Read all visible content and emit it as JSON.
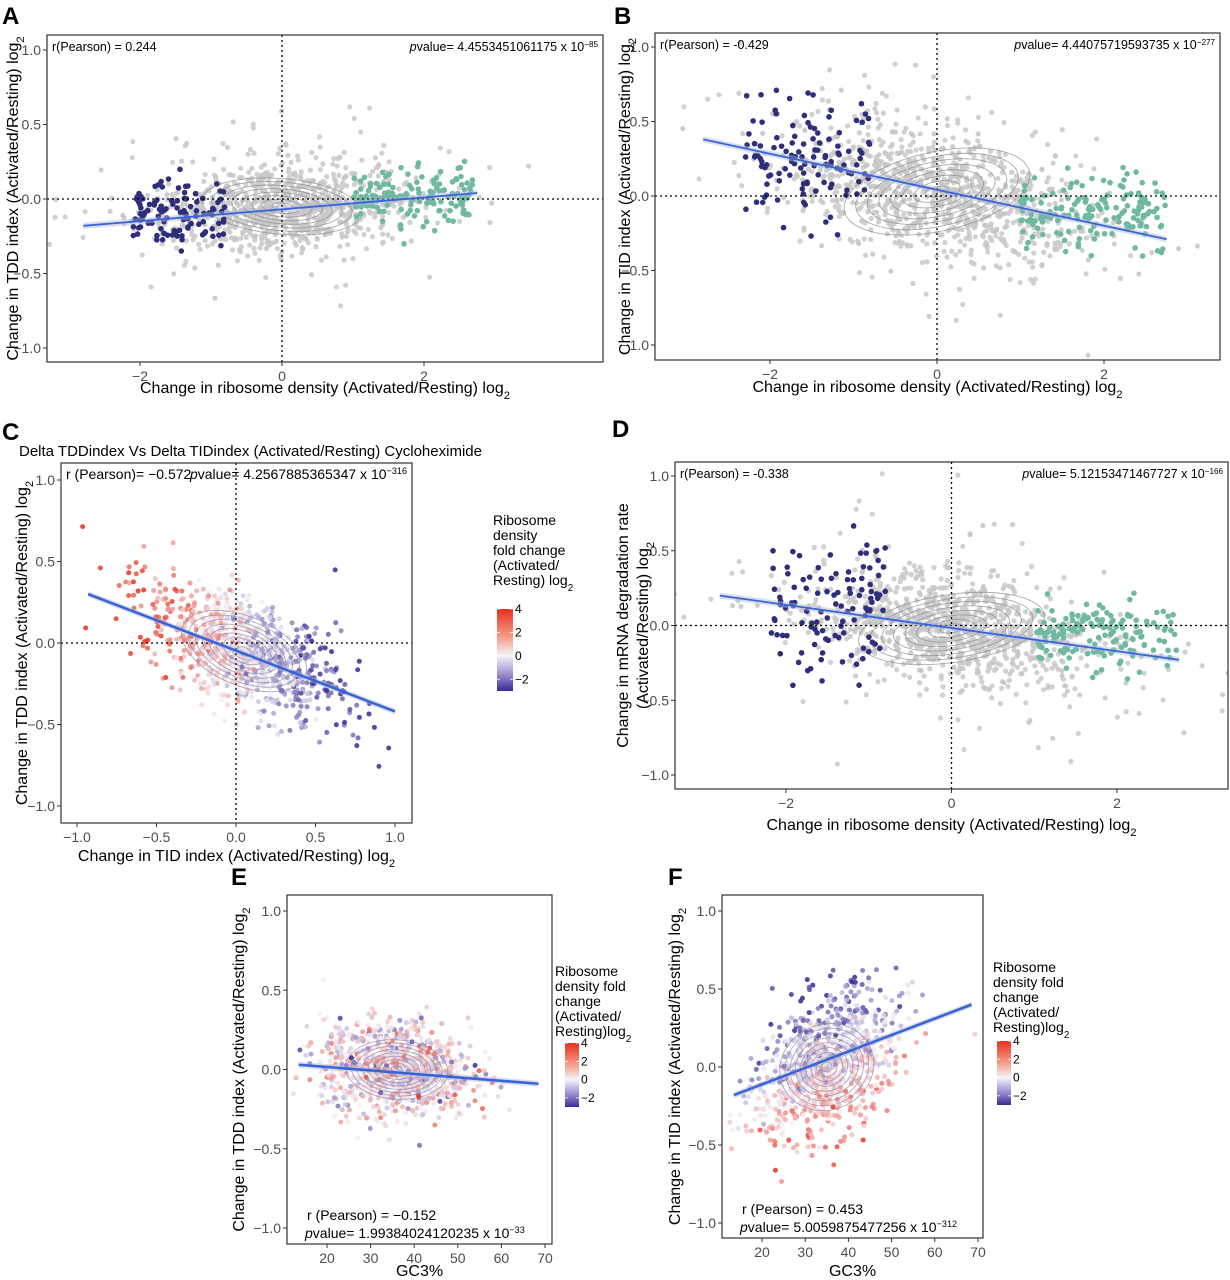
{
  "figure": {
    "colors": {
      "background_points": "#c8c8c8",
      "low_group": "#2e2e7a",
      "high_group": "#6fb8a2",
      "fit_line": "#3a63d8",
      "contour": "#8a8a8a",
      "scale_high": "#e8301c",
      "scale_mid": "#f4f4fa",
      "scale_low": "#3b2a94"
    }
  },
  "chart_data": [
    {
      "id": "A",
      "panel_label": "A",
      "type": "scatter",
      "title": "",
      "xlabel": "Change in ribosome density (Activated/Resting) log",
      "xlabel_sub": "2",
      "ylabel": "Change in TDD index (Activated/Resting) log",
      "ylabel_sub": "2",
      "xlim": [
        -3.0,
        3.2
      ],
      "ylim": [
        -1.1,
        1.1
      ],
      "xticks": [
        -2,
        0,
        2
      ],
      "xtick_labels": [
        "−2",
        "0",
        "2"
      ],
      "yticks": [
        1.0,
        0.5,
        0.0,
        -0.5,
        -1.0
      ],
      "ytick_labels": [
        "1.0",
        "0.5",
        "0.0",
        "−0.5",
        "−1.0"
      ],
      "grid": false,
      "reference_lines": {
        "x": 0,
        "y": 0
      },
      "annotation_left": "r(Pearson) = 0.244",
      "annotation_right_prefix": "p",
      "annotation_right": "value= 4.4553451061175 x 10",
      "annotation_right_exp": "−85",
      "annotation_position": "top",
      "fit_line": {
        "x": [
          -2.8,
          2.75
        ],
        "y": [
          -0.18,
          0.04
        ]
      },
      "cloud": {
        "center": [
          0.0,
          -0.05
        ],
        "spread": [
          0.85,
          0.14
        ],
        "n": 900,
        "slope": 0.04
      },
      "groups": [
        {
          "name": "low ribosome density",
          "color_key": "low_group",
          "x_range": [
            -2.1,
            -0.8
          ],
          "center_y": -0.1,
          "spread_y": 0.12,
          "n": 110
        },
        {
          "name": "high ribosome density",
          "color_key": "high_group",
          "x_range": [
            1.0,
            2.7
          ],
          "center_y": 0.0,
          "spread_y": 0.1,
          "n": 150
        }
      ]
    },
    {
      "id": "B",
      "panel_label": "B",
      "type": "scatter",
      "title": "",
      "xlabel": "Change in ribosome density (Activated/Resting) log",
      "xlabel_sub": "2",
      "ylabel": "Change in TID index (Activated/Resting) log",
      "ylabel_sub": "2",
      "xlim": [
        -3.0,
        3.3
      ],
      "ylim": [
        -1.1,
        1.1
      ],
      "xticks": [
        -2,
        0,
        2
      ],
      "xtick_labels": [
        "−2",
        "0",
        "2"
      ],
      "yticks": [
        1.0,
        0.5,
        0.0,
        -0.5,
        -1.0
      ],
      "ytick_labels": [
        "1.0",
        "0.5",
        "0.0",
        "−0.5",
        "−1.0"
      ],
      "grid": false,
      "reference_lines": {
        "x": 0,
        "y": 0
      },
      "annotation_left": "r(Pearson) = -0.429",
      "annotation_right_prefix": "p",
      "annotation_right": "value= 4.44075719593735 x 10",
      "annotation_right_exp": "−277",
      "annotation_position": "top",
      "fit_line": {
        "x": [
          -2.8,
          2.75
        ],
        "y": [
          0.38,
          -0.29
        ]
      },
      "cloud": {
        "center": [
          0.0,
          0.03
        ],
        "spread": [
          0.85,
          0.2
        ],
        "n": 1000,
        "slope": -0.12
      },
      "groups": [
        {
          "name": "low ribosome density",
          "color_key": "low_group",
          "x_range": [
            -2.3,
            -0.8
          ],
          "center_y": 0.25,
          "spread_y": 0.22,
          "n": 120
        },
        {
          "name": "high ribosome density",
          "color_key": "high_group",
          "x_range": [
            1.0,
            2.75
          ],
          "center_y": -0.12,
          "spread_y": 0.12,
          "n": 160
        }
      ]
    },
    {
      "id": "C",
      "panel_label": "C",
      "type": "scatter",
      "title": "Delta TDDindex Vs Delta TIDindex (Activated/Resting) Cycloheximide",
      "xlabel": "Change in TID index (Activated/Resting) log",
      "xlabel_sub": "2",
      "ylabel": "Change in TDD index (Activated/Resting) log",
      "ylabel_sub": "2",
      "xlim": [
        -1.1,
        1.1
      ],
      "ylim": [
        -1.1,
        1.1
      ],
      "xticks": [
        -1.0,
        -0.5,
        0.0,
        0.5,
        1.0
      ],
      "xtick_labels": [
        "−1.0",
        "−0.5",
        "0.0",
        "0.5",
        "1.0"
      ],
      "yticks": [
        1.0,
        0.5,
        0.0,
        -0.5,
        -1.0
      ],
      "ytick_labels": [
        "1.0",
        "0.5",
        "0.0",
        "−0.5",
        "−1.0"
      ],
      "grid": false,
      "reference_lines": {
        "x": 0,
        "y": 0
      },
      "annotation_left": "r (Pearson)= −0.572",
      "annotation_right_prefix": "p",
      "annotation_right": "value= 4.2567885365347 x 10",
      "annotation_right_exp": "−316",
      "annotation_position": "top",
      "fit_line": {
        "x": [
          -0.93,
          1.0
        ],
        "y": [
          0.3,
          -0.42
        ]
      },
      "colored_cloud": {
        "center": [
          0.05,
          -0.05
        ],
        "spread": [
          0.3,
          0.17
        ],
        "n": 900,
        "slope": -0.4,
        "color_gradient_axis": "x"
      },
      "legend": {
        "title_lines": [
          "Ribosome",
          "density",
          "fold change",
          "(Activated/",
          "Resting) log"
        ],
        "title_sub": "2",
        "ticks": [
          "4",
          "2",
          "0",
          "−2"
        ],
        "tick_values": [
          4,
          2,
          0,
          -2
        ],
        "range": [
          -3,
          4
        ],
        "placement": "right"
      }
    },
    {
      "id": "D",
      "panel_label": "D",
      "type": "scatter",
      "title": "",
      "xlabel": "Change in ribosome density (Activated/Resting) log",
      "xlabel_sub": "2",
      "ylabel_line1": "Change in mRNA degradation rate",
      "ylabel": "(Activated/Resting) log",
      "ylabel_sub": "2",
      "xlim": [
        -3.0,
        3.3
      ],
      "ylim": [
        -1.1,
        1.1
      ],
      "xticks": [
        -2,
        0,
        2
      ],
      "xtick_labels": [
        "−2",
        "0",
        "2"
      ],
      "yticks": [
        1.0,
        0.5,
        0.0,
        -0.5,
        -1.0
      ],
      "ytick_labels": [
        "1.0",
        "0.5",
        "0.0",
        "−0.5",
        "−1.0"
      ],
      "grid": false,
      "reference_lines": {
        "x": 0,
        "y": 0
      },
      "annotation_left": "r(Pearson) = -0.338",
      "annotation_right_prefix": "p",
      "annotation_right": "value= 5.12153471467727 x 10",
      "annotation_right_exp": "−166",
      "annotation_position": "top",
      "fit_line": {
        "x": [
          -2.8,
          2.75
        ],
        "y": [
          0.2,
          -0.23
        ]
      },
      "cloud": {
        "center": [
          0.0,
          -0.02
        ],
        "spread": [
          0.85,
          0.17
        ],
        "n": 1000,
        "slope": -0.08
      },
      "groups": [
        {
          "name": "low ribosome density",
          "color_key": "low_group",
          "x_range": [
            -2.2,
            -0.8
          ],
          "center_y": 0.1,
          "spread_y": 0.22,
          "n": 110
        },
        {
          "name": "high ribosome density",
          "color_key": "high_group",
          "x_range": [
            1.0,
            2.75
          ],
          "center_y": -0.05,
          "spread_y": 0.12,
          "n": 150
        }
      ]
    },
    {
      "id": "E",
      "panel_label": "E",
      "type": "scatter",
      "title": "",
      "xlabel": "GC3%",
      "xlabel_sub": "",
      "ylabel": "Change in TDD index (Activated/Resting) log",
      "ylabel_sub": "2",
      "xlim": [
        11,
        72
      ],
      "ylim": [
        -1.1,
        1.1
      ],
      "xticks": [
        20,
        30,
        40,
        50,
        60,
        70
      ],
      "xtick_labels": [
        "20",
        "30",
        "40",
        "50",
        "60",
        "70"
      ],
      "yticks": [
        1.0,
        0.5,
        0.0,
        -0.5,
        -1.0
      ],
      "ytick_labels": [
        "1.0",
        "0.5",
        "0.0",
        "−0.5",
        "−1.0"
      ],
      "grid": false,
      "reference_lines": null,
      "annotation_left": "r (Pearson) = −0.152",
      "annotation_right_prefix": "p",
      "annotation_right": "value= 1.99384024120235 x 10",
      "annotation_right_exp": "−33",
      "annotation_position": "bottom",
      "fit_line": {
        "x": [
          13.5,
          68.5
        ],
        "y": [
          0.03,
          -0.09
        ]
      },
      "colored_cloud": {
        "center": [
          36,
          0.0
        ],
        "spread": [
          8.5,
          0.15
        ],
        "n": 900,
        "slope": -0.002,
        "color_gradient_axis": "y"
      },
      "legend": {
        "title_lines": [
          "Ribosome",
          "density fold",
          "change",
          "(Activated/",
          "Resting)log"
        ],
        "title_sub": "2",
        "ticks": [
          "4",
          "2",
          "0",
          "−2"
        ],
        "tick_values": [
          4,
          2,
          0,
          -2
        ],
        "range": [
          -3,
          4
        ],
        "placement": "right"
      }
    },
    {
      "id": "F",
      "panel_label": "F",
      "type": "scatter",
      "title": "",
      "xlabel": "GC3%",
      "xlabel_sub": "",
      "ylabel": "Change in TID index (Activated/Resting) log",
      "ylabel_sub": "2",
      "xlim": [
        11,
        72
      ],
      "ylim": [
        -1.1,
        1.1
      ],
      "xticks": [
        20,
        30,
        40,
        50,
        60,
        70
      ],
      "xtick_labels": [
        "20",
        "30",
        "40",
        "50",
        "60",
        "70"
      ],
      "yticks": [
        1.0,
        0.5,
        0.0,
        -0.5,
        -1.0
      ],
      "ytick_labels": [
        "1.0",
        "0.5",
        "0.0",
        "−0.5",
        "−1.0"
      ],
      "grid": false,
      "reference_lines": null,
      "annotation_left": "r (Pearson) = 0.453",
      "annotation_right_prefix": "p",
      "annotation_right": "value= 5.0059875477256 x 10",
      "annotation_right_exp": "−312",
      "annotation_position": "bottom",
      "fit_line": {
        "x": [
          13.5,
          68.5
        ],
        "y": [
          -0.18,
          0.4
        ]
      },
      "colored_cloud": {
        "center": [
          35,
          0.0
        ],
        "spread": [
          8.0,
          0.22
        ],
        "n": 900,
        "slope": 0.012,
        "color_gradient_axis": "y"
      },
      "legend": {
        "title_lines": [
          "Ribosome",
          "density fold",
          "change",
          "(Activated/",
          "Resting)log"
        ],
        "title_sub": "2",
        "ticks": [
          "4",
          "2",
          "0",
          "−2"
        ],
        "tick_values": [
          4,
          2,
          0,
          -2
        ],
        "range": [
          -3,
          4
        ],
        "placement": "right"
      }
    }
  ]
}
